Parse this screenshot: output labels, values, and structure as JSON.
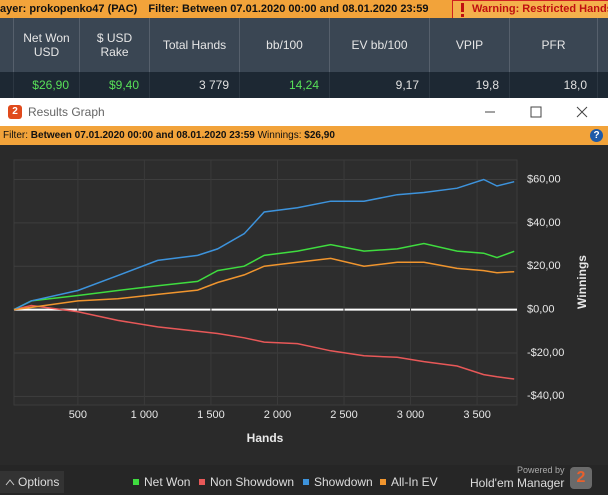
{
  "topbar": {
    "player": "ayer: prokopenko47 (PAC)",
    "filter": "Filter: Between 07.01.2020 00:00 and 08.01.2020 23:59",
    "warning": "Warning: Restricted Hands"
  },
  "table": {
    "columns": [
      "Net Won USD",
      "$ USD Rake",
      "Total Hands",
      "bb/100",
      "EV bb/100",
      "VPIP",
      "PFR"
    ],
    "rows": [
      [
        "$26,90",
        "$9,40",
        "3 779",
        "14,24",
        "9,17",
        "19,8",
        "18,0"
      ]
    ]
  },
  "window": {
    "icon": "2",
    "title": "Results Graph"
  },
  "filter": {
    "label": "Filter:",
    "range": "Between 07.01.2020 00:00 and 08.01.2020 23:59",
    "winnings_label": "Winnings:",
    "winnings": "$26,90",
    "help": "?"
  },
  "chart_data": {
    "type": "line",
    "xlabel": "Hands",
    "ylabel": "Winnings",
    "x": [
      20,
      150,
      500,
      800,
      1100,
      1400,
      1550,
      1750,
      1900,
      2150,
      2400,
      2650,
      2900,
      3100,
      3350,
      3550,
      3650,
      3779
    ],
    "series": [
      {
        "name": "Net Won",
        "color": "#3fdc3f",
        "values": [
          0,
          4,
          6.5,
          8.8,
          11,
          13,
          18,
          20,
          25,
          27,
          30,
          27,
          28,
          30.5,
          27,
          26,
          24,
          26.9
        ]
      },
      {
        "name": "Non Showdown",
        "color": "#e85858",
        "values": [
          0,
          1.9,
          -1,
          -5,
          -8,
          -10,
          -11,
          -13,
          -15,
          -15.7,
          -19,
          -21.3,
          -22,
          -24,
          -26,
          -30,
          -31,
          -32
        ]
      },
      {
        "name": "Showdown",
        "color": "#3d93dc",
        "values": [
          0,
          4,
          8.8,
          15.7,
          22.7,
          25,
          28,
          35,
          45,
          47,
          50,
          50,
          53,
          54,
          56,
          60,
          57,
          59
        ]
      },
      {
        "name": "All-In EV",
        "color": "#f0952e",
        "values": [
          0,
          1,
          4,
          5,
          7,
          9,
          12.5,
          16,
          20,
          21.8,
          23.6,
          20,
          21.8,
          21.8,
          19,
          18,
          17,
          17.5
        ]
      }
    ],
    "xlim": [
      20,
      3800
    ],
    "ylim": [
      -44,
      69
    ],
    "xticks": [
      500,
      {
        "value": 1000,
        "label": "1 000"
      },
      {
        "value": 1500,
        "label": "1 500"
      },
      {
        "value": 2000,
        "label": "2 000"
      },
      {
        "value": 2500,
        "label": "2 500"
      },
      {
        "value": 3000,
        "label": "3 000"
      },
      {
        "value": 3500,
        "label": "3 500"
      }
    ],
    "yticks": [
      {
        "value": -40,
        "label": "-$40,00"
      },
      {
        "value": -20,
        "label": "-$20,00"
      },
      {
        "value": 0,
        "label": "$0,00"
      },
      {
        "value": 20,
        "label": "$20,00"
      },
      {
        "value": 40,
        "label": "$40,00"
      },
      {
        "value": 60,
        "label": "$60,00"
      }
    ],
    "grid": true
  },
  "footer": {
    "options": "Options",
    "powered_by": "Powered by",
    "brand": "Hold'em Manager",
    "logo": "2"
  }
}
